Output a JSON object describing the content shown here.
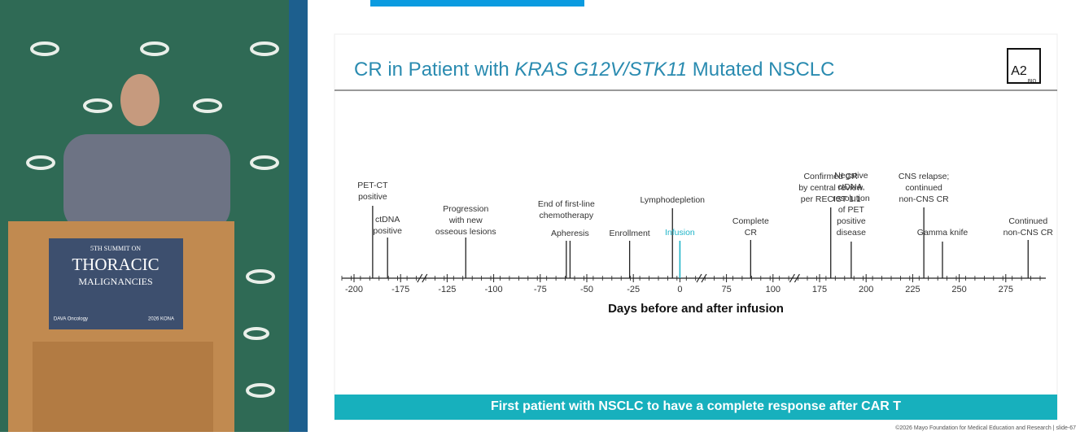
{
  "podium": {
    "lines": [
      "5TH SUMMIT ON",
      "THORACIC",
      "MALIGNANCIES"
    ],
    "left_logo": "DAVA Oncology",
    "right_logo": "2026 KONA"
  },
  "slide": {
    "title_parts": [
      "CR in Patient with ",
      "KRAS G12V/STK11",
      " Mutated NSCLC"
    ],
    "logo": {
      "mark": "A2",
      "sub": "BIO"
    },
    "timeline": {
      "xlabel": "Days before and after infusion",
      "xticks": [
        -200,
        -175,
        -125,
        -100,
        -75,
        -50,
        -25,
        0,
        75,
        100,
        175,
        200,
        225,
        250,
        275
      ],
      "highlight_color": "#1fb4c8",
      "events": [
        {
          "label": [
            "PET-CT",
            "positive"
          ],
          "day": -190
        },
        {
          "label": [
            "ctDNA",
            "positive"
          ],
          "day": -182
        },
        {
          "label": [
            "Progression",
            "with new",
            "osseous lesions"
          ],
          "day": -115
        },
        {
          "label": [
            "End of first-line",
            "chemotherapy"
          ],
          "day": -61
        },
        {
          "label": [
            "Apheresis"
          ],
          "day": -59
        },
        {
          "label": [
            "Enrollment"
          ],
          "day": -27
        },
        {
          "label": [
            "Lymphodepletion"
          ],
          "day": -4
        },
        {
          "label": [
            "Infusion"
          ],
          "day": 0,
          "highlight": true
        },
        {
          "label": [
            "Complete",
            "CR"
          ],
          "day": 88
        },
        {
          "label": [
            "Confirmed CR",
            "by central review",
            "per RECIST 1.1"
          ],
          "day": 181
        },
        {
          "label": [
            "Negative",
            "ctDNA,",
            "resolution",
            "of PET",
            "positive",
            "disease"
          ],
          "day": 192
        },
        {
          "label": [
            "CNS relapse;",
            "continued",
            "non-CNS CR"
          ],
          "day": 231
        },
        {
          "label": [
            "Gamma knife"
          ],
          "day": 241
        },
        {
          "label": [
            "Continued",
            "non-CNS CR"
          ],
          "day": 287
        }
      ]
    },
    "banner": "First patient with NSCLC to have a complete response after CAR T"
  },
  "footer": "©2026 Mayo Foundation for Medical Education and Research  |  slide-67"
}
